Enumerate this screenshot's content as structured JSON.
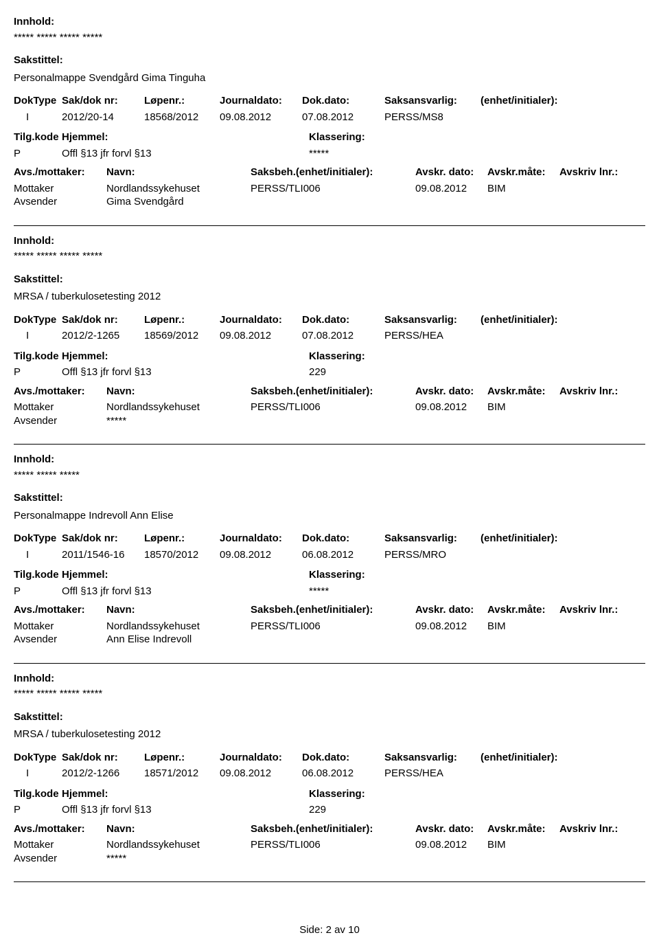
{
  "labels": {
    "innhold": "Innhold:",
    "sakstitel": "Sakstittel:",
    "doktype": "DokType",
    "sakdok": "Sak/dok nr:",
    "lopenr": "Løpenr.:",
    "journaldato": "Journaldato:",
    "dokdato": "Dok.dato:",
    "saksansvarlig": "Saksansvarlig:",
    "enhet": "(enhet/initialer):",
    "tilgkode": "Tilg.kode",
    "hjemmel": "Hjemmel:",
    "klassering": "Klassering:",
    "avsmottaker": "Avs./mottaker:",
    "navn": "Navn:",
    "saksbeh": "Saksbeh.(enhet/initialer):",
    "avskrdato": "Avskr. dato:",
    "avskrmate": "Avskr.måte:",
    "avskrivlnr": "Avskriv lnr.:",
    "mottaker": "Mottaker",
    "avsender": "Avsender"
  },
  "records": [
    {
      "innhold_stars": "***** ***** ***** *****",
      "case_title": "Personalmappe Svendgård Gima Tinguha",
      "doktype": "I",
      "sakdok": "2012/20-14",
      "lopenr": "18568/2012",
      "journaldato": "09.08.2012",
      "dokdato": "07.08.2012",
      "saksansvarlig": "PERSS/MS8",
      "enhet": "",
      "tilgkode": "P",
      "hjemmel": "Offl §13 jfr forvl §13",
      "klassering": "*****",
      "parties": [
        {
          "role": "Mottaker",
          "navn": "Nordlandssykehuset",
          "saksbeh": "PERSS/TLI006",
          "avskrdato": "09.08.2012",
          "avskrmate": "BIM",
          "avskrivlnr": ""
        },
        {
          "role": "Avsender",
          "navn": "Gima Svendgård",
          "saksbeh": "",
          "avskrdato": "",
          "avskrmate": "",
          "avskrivlnr": ""
        }
      ]
    },
    {
      "innhold_stars": "***** ***** ***** *****",
      "case_title": "MRSA / tuberkulosetesting 2012",
      "doktype": "I",
      "sakdok": "2012/2-1265",
      "lopenr": "18569/2012",
      "journaldato": "09.08.2012",
      "dokdato": "07.08.2012",
      "saksansvarlig": "PERSS/HEA",
      "enhet": "",
      "tilgkode": "P",
      "hjemmel": "Offl §13 jfr forvl §13",
      "klassering": "229",
      "parties": [
        {
          "role": "Mottaker",
          "navn": "Nordlandssykehuset",
          "saksbeh": "PERSS/TLI006",
          "avskrdato": "09.08.2012",
          "avskrmate": "BIM",
          "avskrivlnr": ""
        },
        {
          "role": "Avsender",
          "navn": "*****",
          "saksbeh": "",
          "avskrdato": "",
          "avskrmate": "",
          "avskrivlnr": ""
        }
      ]
    },
    {
      "innhold_stars": "***** ***** *****",
      "case_title": "Personalmappe Indrevoll Ann Elise",
      "doktype": "I",
      "sakdok": "2011/1546-16",
      "lopenr": "18570/2012",
      "journaldato": "09.08.2012",
      "dokdato": "06.08.2012",
      "saksansvarlig": "PERSS/MRO",
      "enhet": "",
      "tilgkode": "P",
      "hjemmel": "Offl §13 jfr forvl §13",
      "klassering": "*****",
      "parties": [
        {
          "role": "Mottaker",
          "navn": "Nordlandssykehuset",
          "saksbeh": "PERSS/TLI006",
          "avskrdato": "09.08.2012",
          "avskrmate": "BIM",
          "avskrivlnr": ""
        },
        {
          "role": "Avsender",
          "navn": "Ann Elise Indrevoll",
          "saksbeh": "",
          "avskrdato": "",
          "avskrmate": "",
          "avskrivlnr": ""
        }
      ]
    },
    {
      "innhold_stars": "***** ***** ***** *****",
      "case_title": "MRSA / tuberkulosetesting 2012",
      "doktype": "I",
      "sakdok": "2012/2-1266",
      "lopenr": "18571/2012",
      "journaldato": "09.08.2012",
      "dokdato": "06.08.2012",
      "saksansvarlig": "PERSS/HEA",
      "enhet": "",
      "tilgkode": "P",
      "hjemmel": "Offl §13 jfr forvl §13",
      "klassering": "229",
      "parties": [
        {
          "role": "Mottaker",
          "navn": "Nordlandssykehuset",
          "saksbeh": "PERSS/TLI006",
          "avskrdato": "09.08.2012",
          "avskrmate": "BIM",
          "avskrivlnr": ""
        },
        {
          "role": "Avsender",
          "navn": "*****",
          "saksbeh": "",
          "avskrdato": "",
          "avskrmate": "",
          "avskrivlnr": ""
        }
      ]
    }
  ],
  "footer": "Side: 2 av 10"
}
